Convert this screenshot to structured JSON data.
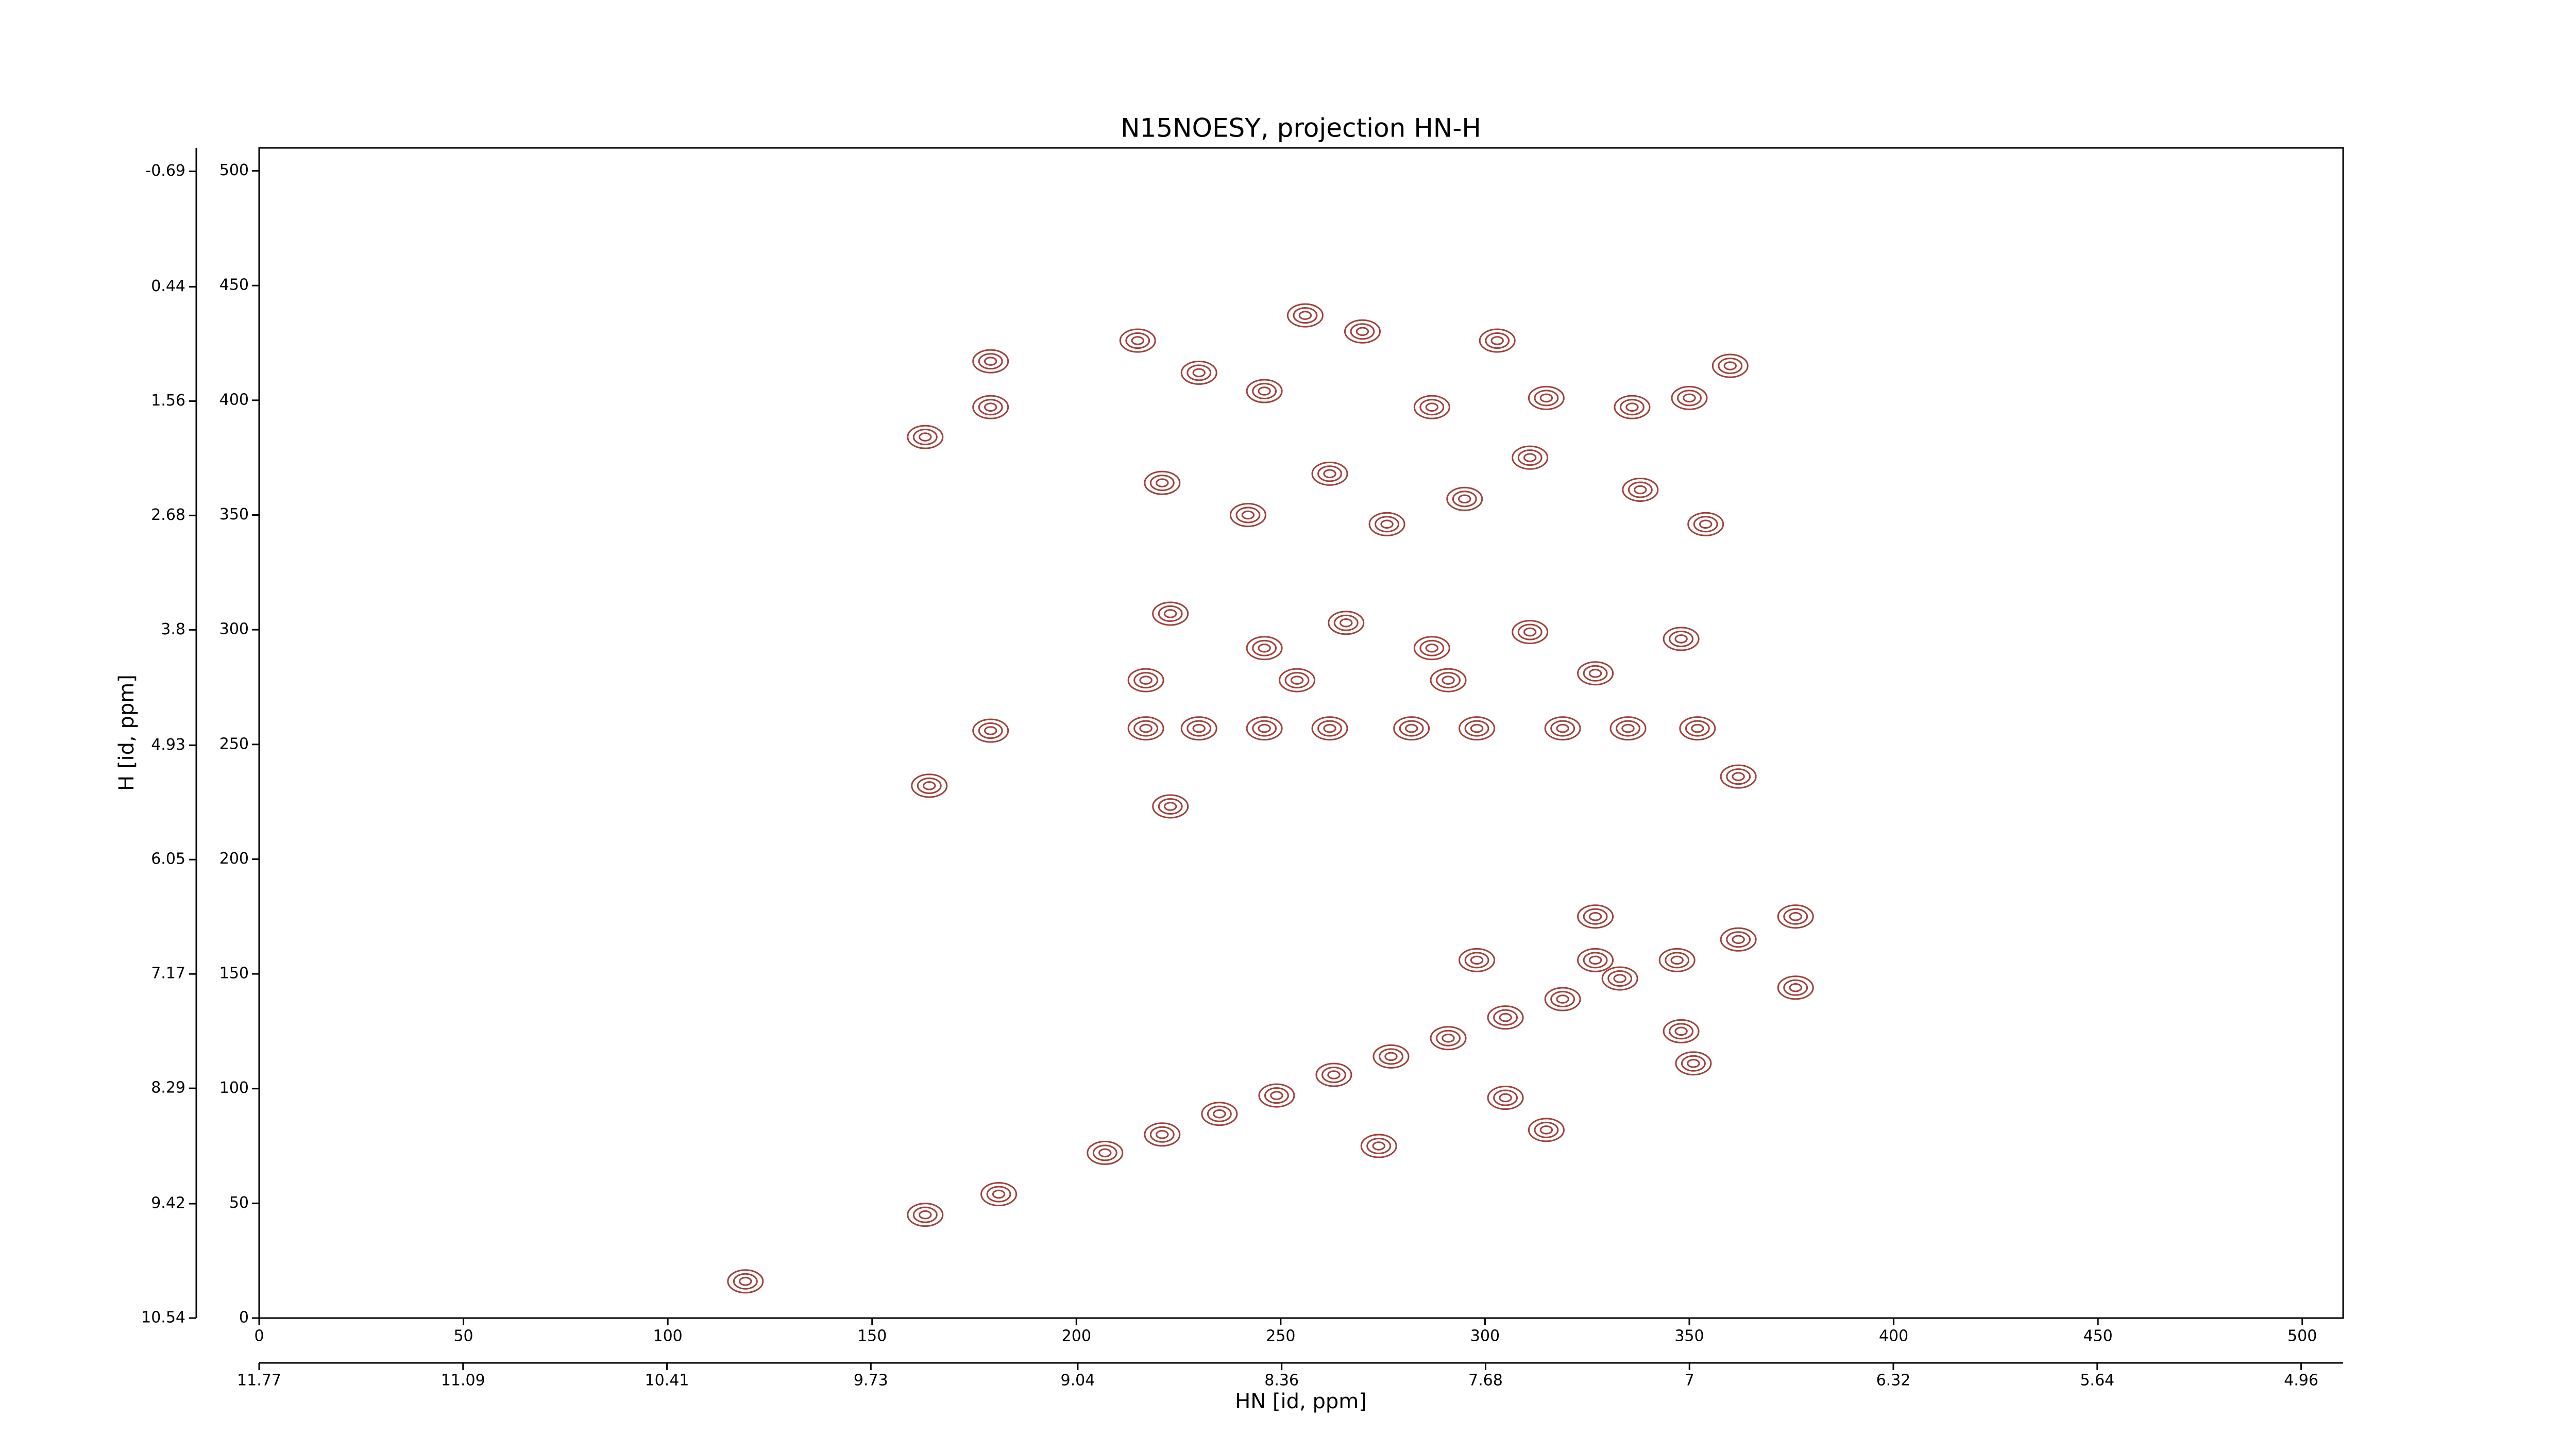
{
  "chart_data": {
    "type": "contour",
    "title": "N15NOESY, projection HN-H",
    "xlabel": "HN [id, ppm]",
    "ylabel": "H [id, ppm]",
    "color": "#a0403a",
    "xlim": [
      0,
      510
    ],
    "ylim": [
      0,
      510
    ],
    "xticks": [
      0,
      50,
      100,
      150,
      200,
      250,
      300,
      350,
      400,
      450,
      500
    ],
    "yticks": [
      0,
      50,
      100,
      150,
      200,
      250,
      300,
      350,
      400,
      450,
      500
    ],
    "x2lim": [
      11.77,
      4.82
    ],
    "x2ticks": [
      11.77,
      11.09,
      10.41,
      9.73,
      9.04,
      8.36,
      7.68,
      7.0,
      6.32,
      5.64,
      4.96
    ],
    "y2lim": [
      10.54,
      -0.92
    ],
    "y2ticks": [
      10.54,
      9.42,
      8.29,
      7.17,
      6.05,
      4.93,
      3.8,
      2.68,
      1.56,
      0.44,
      -0.69
    ],
    "x": [
      119,
      163,
      181,
      207,
      221,
      235,
      249,
      263,
      277,
      291,
      305,
      319,
      333,
      347,
      362,
      376,
      376,
      327,
      327,
      298,
      348,
      351,
      164,
      179,
      217,
      230,
      246,
      262,
      282,
      298,
      319,
      335,
      352,
      163,
      179,
      179,
      215,
      230,
      246,
      256,
      270,
      287,
      303,
      315,
      336,
      350,
      360,
      221,
      242,
      262,
      276,
      295,
      311,
      338,
      354,
      223,
      246,
      266,
      287,
      311,
      348,
      217,
      254,
      291,
      327,
      223,
      362,
      315,
      305,
      274
    ],
    "values": [
      16,
      45,
      54,
      72,
      80,
      89,
      97,
      106,
      114,
      122,
      131,
      139,
      148,
      156,
      165,
      175,
      144,
      175,
      156,
      156,
      125,
      111,
      232,
      256,
      257,
      257,
      257,
      257,
      257,
      257,
      257,
      257,
      257,
      384,
      397,
      417,
      426,
      412,
      404,
      437,
      430,
      397,
      426,
      401,
      397,
      401,
      415,
      364,
      350,
      368,
      346,
      357,
      375,
      361,
      346,
      307,
      292,
      303,
      292,
      299,
      296,
      278,
      278,
      278,
      281,
      223,
      236,
      82,
      96,
      75
    ]
  }
}
